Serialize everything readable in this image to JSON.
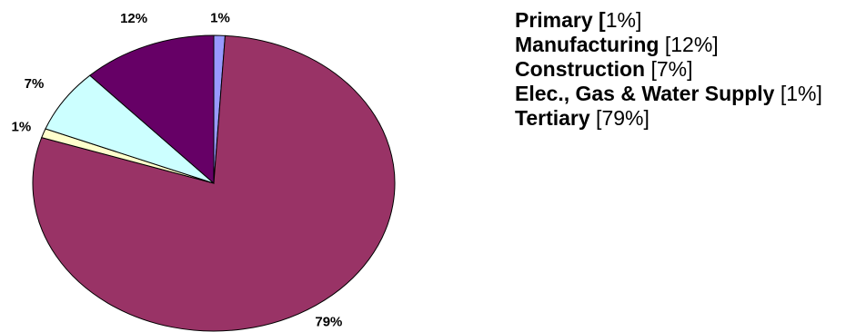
{
  "chart_data": {
    "type": "pie",
    "title": "",
    "slices": [
      {
        "name": "Primary",
        "value": 1,
        "label": "1%",
        "legend_name": "Primary [",
        "legend_value": "1%]",
        "color": "#9999ff"
      },
      {
        "name": "Tertiary",
        "value": 79,
        "label": "79%",
        "legend_name": "Tertiary",
        "legend_value": " [79%]",
        "color": "#993366"
      },
      {
        "name": "Elec., Gas & Water Supply",
        "value": 1,
        "label": "1%",
        "legend_name": "Elec., Gas & Water Supply",
        "legend_value": " [1%]",
        "color": "#ffffcc"
      },
      {
        "name": "Construction",
        "value": 7,
        "label": "7%",
        "legend_name": "Construction",
        "legend_value": " [7%]",
        "color": "#ccffff"
      },
      {
        "name": "Manufacturing",
        "value": 12,
        "label": "12%",
        "legend_name": "Manufacturing",
        "legend_value": " [12%]",
        "color": "#660066"
      }
    ],
    "legend_order": [
      "Primary",
      "Manufacturing",
      "Construction",
      "Elec., Gas & Water Supply",
      "Tertiary"
    ],
    "legend_position": "right",
    "start_angle_deg": 0,
    "direction": "clockwise"
  }
}
